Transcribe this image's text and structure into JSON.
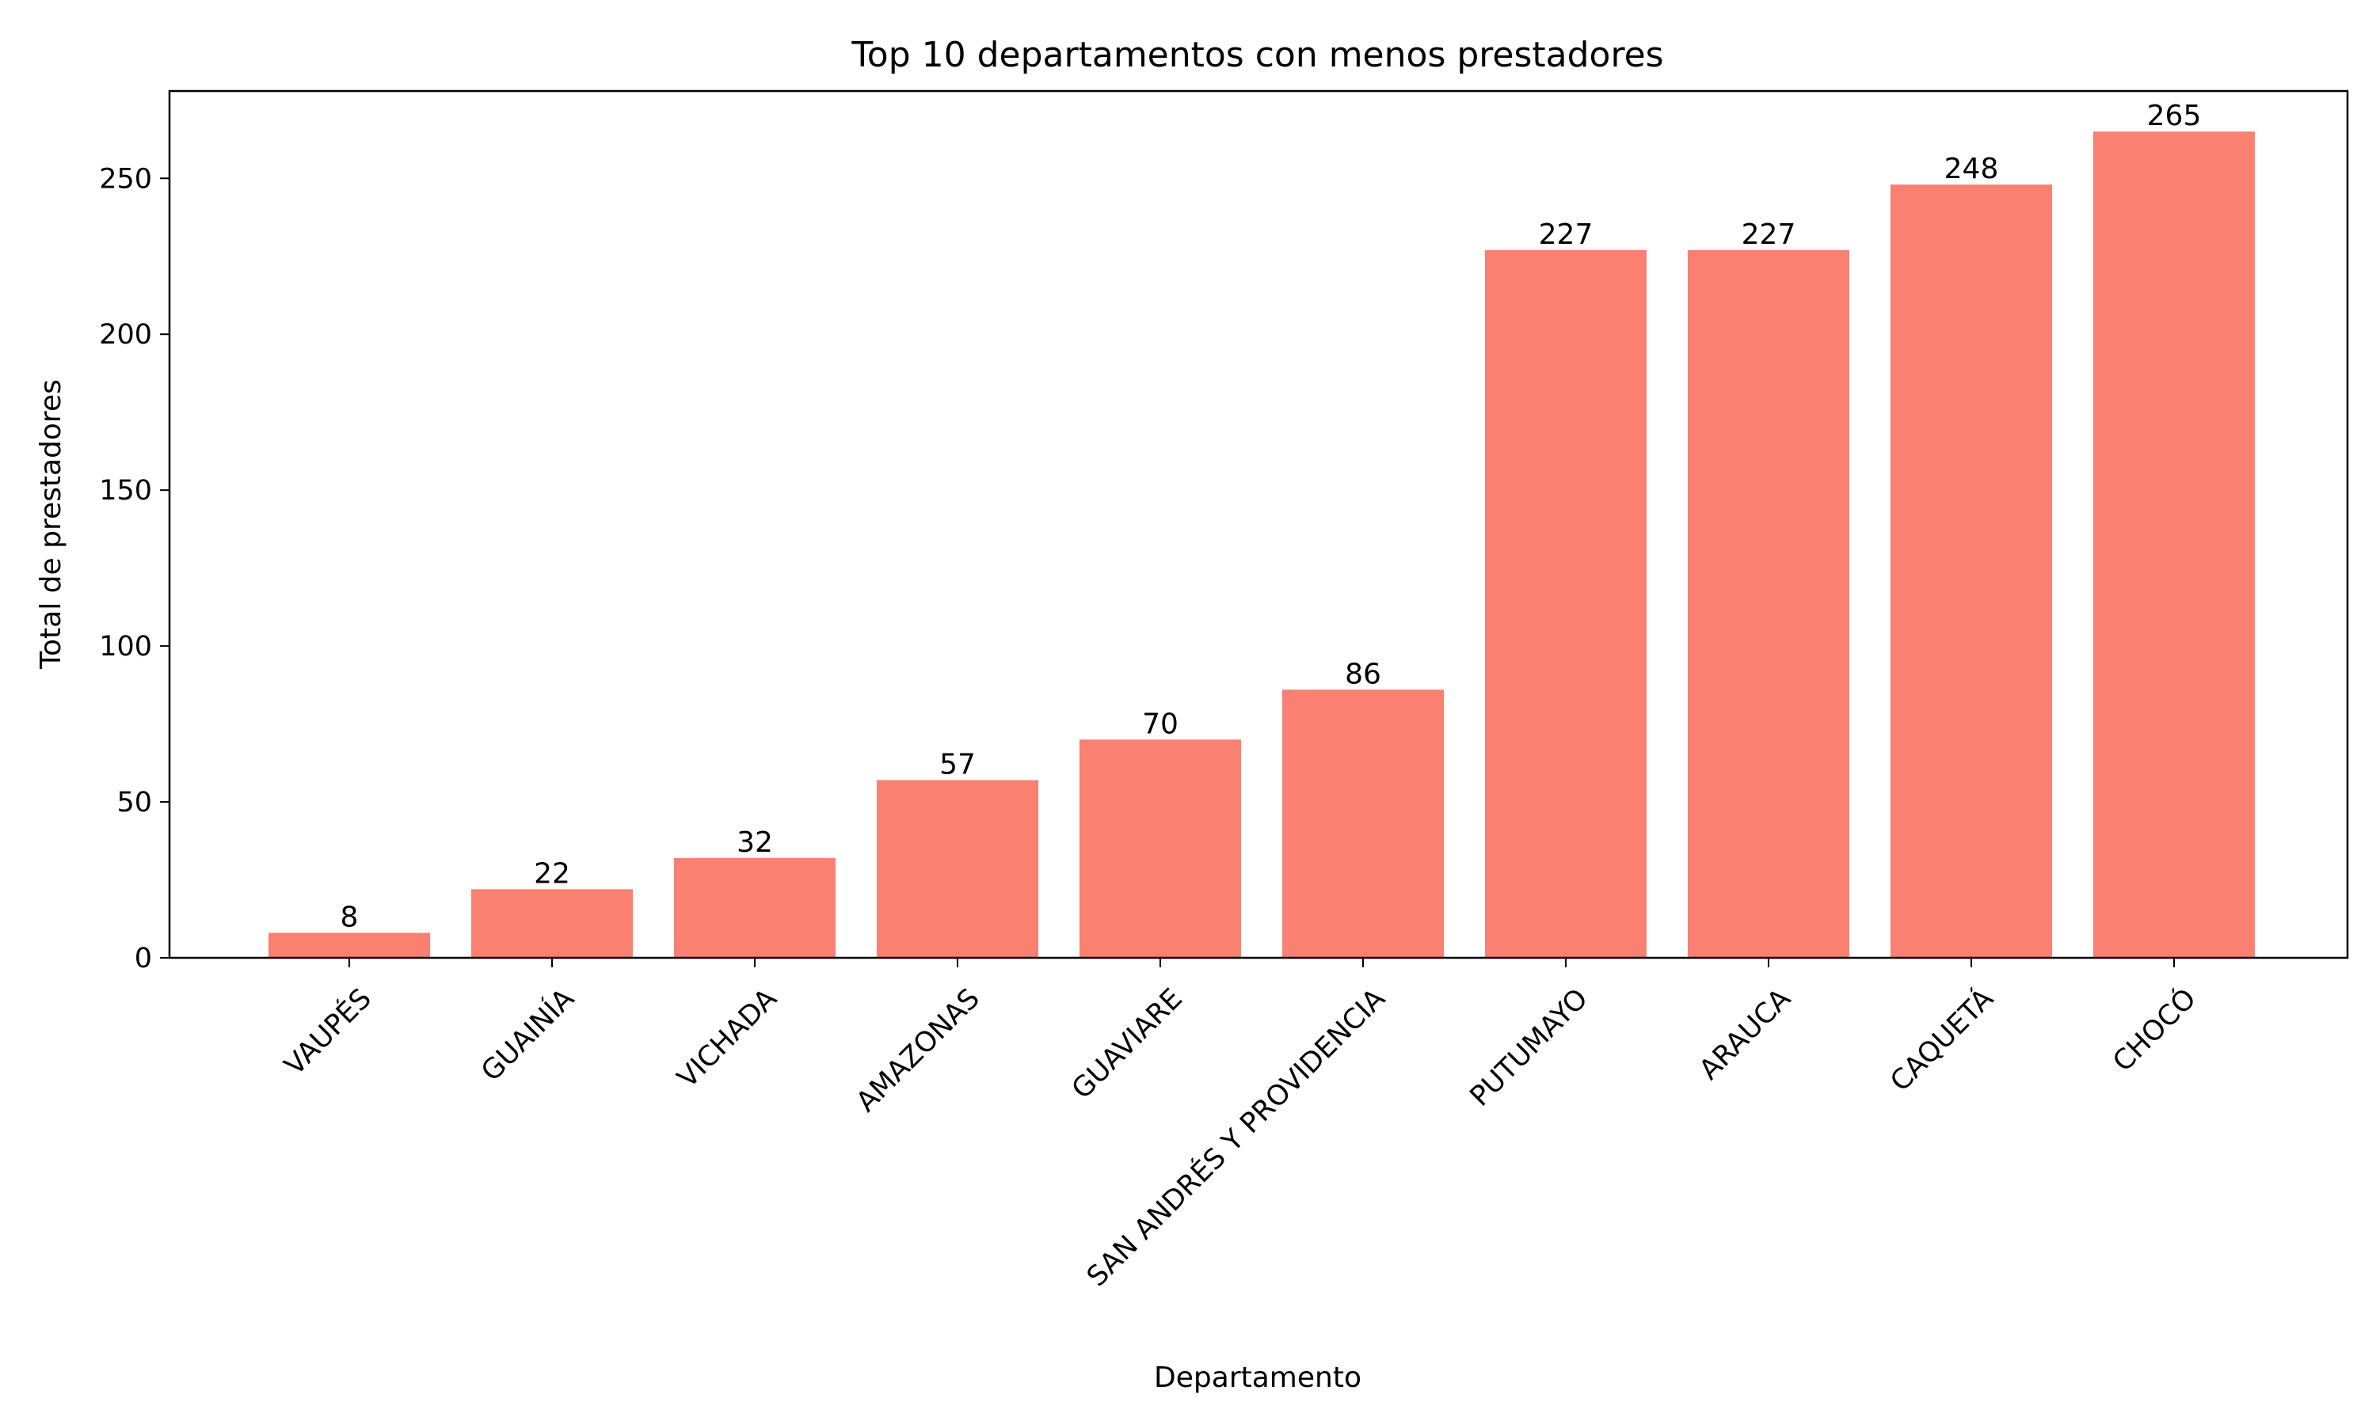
{
  "chart_data": {
    "type": "bar",
    "title": "Top 10 departamentos con menos prestadores",
    "xlabel": "Departamento",
    "ylabel": "Total de prestadores",
    "categories": [
      "VAUPÉS",
      "GUAINÍA",
      "VICHADA",
      "AMAZONAS",
      "GUAVIARE",
      "SAN ANDRÉS Y PROVIDENCIA",
      "PUTUMAYO",
      "ARAUCA",
      "CAQUETÁ",
      "CHOCÓ"
    ],
    "values": [
      8,
      22,
      32,
      57,
      70,
      86,
      227,
      227,
      248,
      265
    ],
    "data_labels": [
      "8",
      "22",
      "32",
      "57",
      "70",
      "86",
      "227",
      "227",
      "248",
      "265"
    ],
    "ylim": [
      0,
      278
    ],
    "yticks": [
      0,
      50,
      100,
      150,
      200,
      250
    ],
    "ytick_labels": [
      "0",
      "50",
      "100",
      "150",
      "200",
      "250"
    ],
    "grid": false,
    "bar_color": "#fa8072",
    "legend": "none"
  }
}
